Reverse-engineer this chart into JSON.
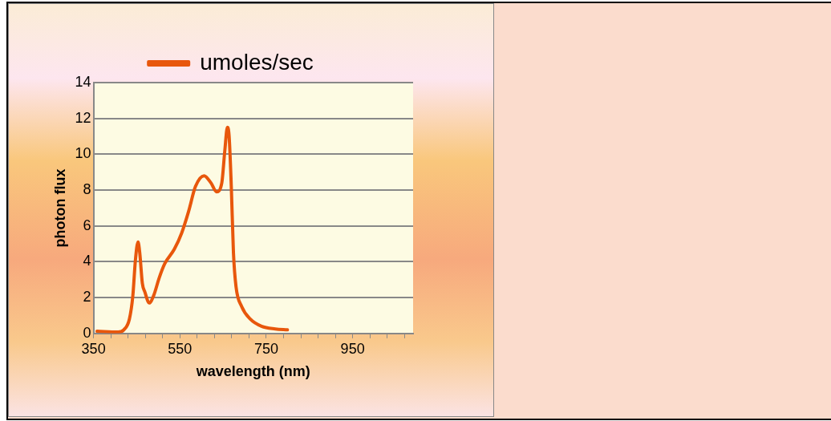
{
  "chart_data": {
    "type": "line",
    "xlabel": "wavelength (nm)",
    "ylabel": "photon flux",
    "x": [
      358,
      407,
      420,
      433,
      441,
      447,
      453,
      457,
      463,
      469,
      479,
      489,
      502,
      515,
      537,
      554,
      570,
      586,
      606,
      622,
      635,
      647,
      654,
      660,
      664,
      669,
      674,
      680,
      693,
      713,
      739,
      771,
      799
    ],
    "series": [
      {
        "name": "umoles/sec",
        "color": "#e8570c",
        "values": [
          0.12,
          0.08,
          0.2,
          0.8,
          2.1,
          4.1,
          5.1,
          4.5,
          2.8,
          2.3,
          1.7,
          2.1,
          3.1,
          3.9,
          4.7,
          5.6,
          6.8,
          8.2,
          8.8,
          8.4,
          7.9,
          8.4,
          10.2,
          11.5,
          11.0,
          8.2,
          4.5,
          2.6,
          1.5,
          0.8,
          0.4,
          0.25,
          0.2
        ]
      }
    ],
    "xlim": [
      350,
      1090
    ],
    "xticks": [
      350,
      {
        "value": 390,
        "label": null
      },
      {
        "value": 430,
        "label": null
      },
      {
        "value": 470,
        "label": null
      },
      {
        "value": 510,
        "label": null
      },
      550,
      {
        "value": 590,
        "label": null
      },
      {
        "value": 630,
        "label": null
      },
      {
        "value": 670,
        "label": null
      },
      {
        "value": 710,
        "label": null
      },
      750,
      {
        "value": 790,
        "label": null
      },
      {
        "value": 830,
        "label": null
      },
      {
        "value": 870,
        "label": null
      },
      {
        "value": 910,
        "label": null
      },
      950,
      {
        "value": 990,
        "label": null
      },
      {
        "value": 1030,
        "label": null
      },
      {
        "value": 1070,
        "label": null
      }
    ],
    "ylim": [
      0,
      14
    ],
    "yticks": [
      0,
      2,
      4,
      6,
      8,
      10,
      12,
      14
    ],
    "grid": "y",
    "legend": "top",
    "marker": "none",
    "line_style": "solid"
  }
}
